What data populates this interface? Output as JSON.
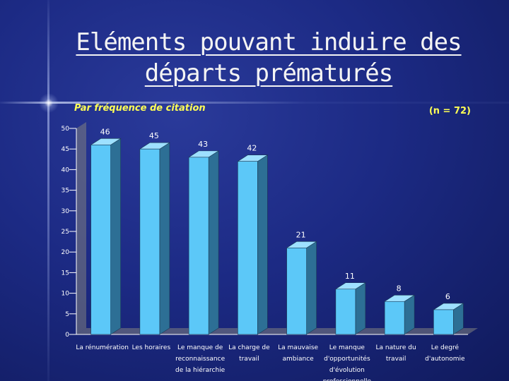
{
  "slide": {
    "title_line1": "Eléments pouvant induire des",
    "title_line2": "départs prématurés",
    "subtitle": "Par fréquence de citation",
    "sample_size": "(n = 72)"
  },
  "chart_data": {
    "type": "bar",
    "categories": [
      [
        "La rénumération"
      ],
      [
        "Les horaires"
      ],
      [
        "Le manque de",
        "reconnaissance",
        "de la hiérarchie"
      ],
      [
        "La charge de",
        "travail"
      ],
      [
        "La mauvaise",
        "ambiance"
      ],
      [
        "Le manque",
        "d'opportunités",
        "d'évolution",
        "professionnelle"
      ],
      [
        "La nature du",
        "travail"
      ],
      [
        "Le degré",
        "d'autonomie"
      ]
    ],
    "values": [
      46,
      45,
      43,
      42,
      21,
      11,
      8,
      6
    ],
    "ylim": [
      0,
      50
    ],
    "yticks": [
      0,
      5,
      10,
      15,
      20,
      25,
      30,
      35,
      40,
      45,
      50
    ],
    "grid": false,
    "colors": {
      "bar_front": "#5cc8f8",
      "bar_side": "#2d6f95",
      "bar_top": "#9ee0ff",
      "axis": "#ffffff",
      "wall_side": "#808080"
    }
  }
}
